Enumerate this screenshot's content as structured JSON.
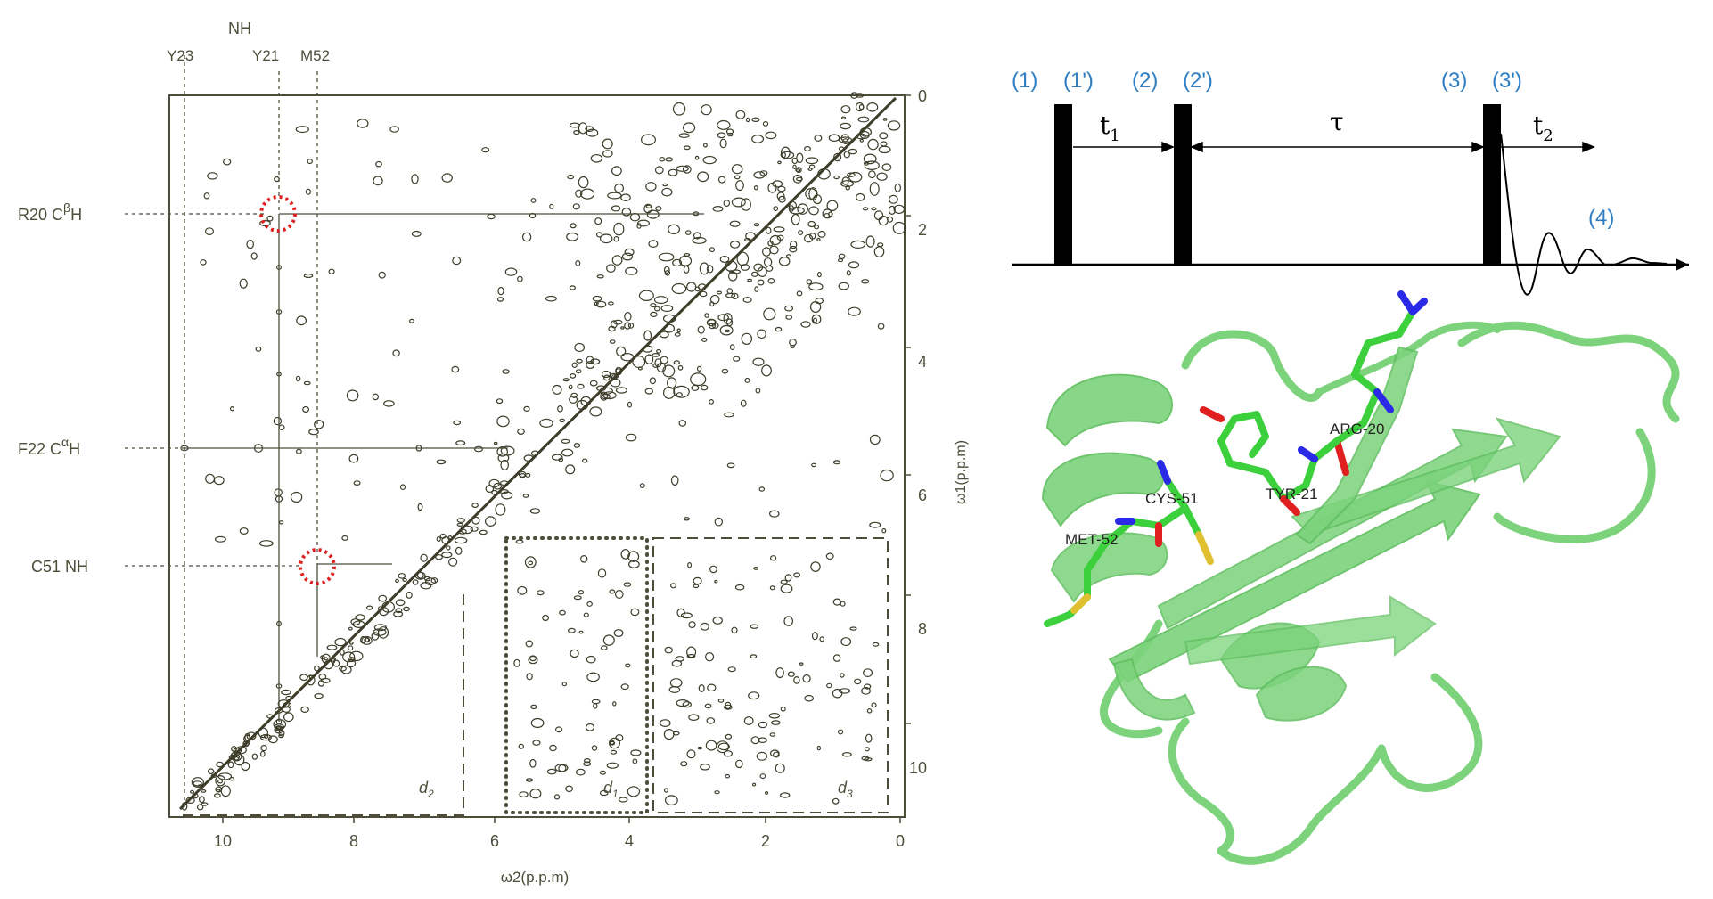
{
  "noesy": {
    "nh_header": "NH",
    "top_labels": [
      "Y23",
      "Y21",
      "M52"
    ],
    "left_labels": [
      {
        "main": "R20  C",
        "sup": "β",
        "tail": "H"
      },
      {
        "main": "F22  C",
        "sup": "α",
        "tail": "H"
      },
      {
        "main": "C51  NH",
        "sup": "",
        "tail": ""
      }
    ],
    "x_ticks": [
      "10",
      "8",
      "6",
      "4",
      "2",
      "0"
    ],
    "y_ticks": [
      "0",
      "2",
      "4",
      "6",
      "8",
      "10"
    ],
    "x_axis_label": "ω2(p.p.m)",
    "y_axis_label": "ω1(p.p.m)",
    "regions": [
      {
        "name": "d",
        "sub": "2"
      },
      {
        "name": "d",
        "sub": "1"
      },
      {
        "name": "d",
        "sub": "3"
      }
    ],
    "colors": {
      "contour": "#3d3d2a",
      "highlight": "#e02020"
    }
  },
  "pulse_sequence": {
    "labels": [
      "(1)",
      "(1')",
      "(2)",
      "(2')",
      "(3)",
      "(3')",
      "(4)"
    ],
    "t1": {
      "sym": "t",
      "sub": "1"
    },
    "tau": "τ",
    "t2": {
      "sym": "t",
      "sub": "2"
    },
    "label_color": "#2f7ec1"
  },
  "protein": {
    "residues": [
      "ARG-20",
      "TYR-21",
      "CYS-51",
      "MET-52"
    ],
    "ribbon_color": "#7cd37c",
    "stick_colors": {
      "carbon": "#3cd13c",
      "nitrogen": "#2a2ae6",
      "oxygen": "#e02020",
      "sulfur": "#e0c030"
    }
  }
}
